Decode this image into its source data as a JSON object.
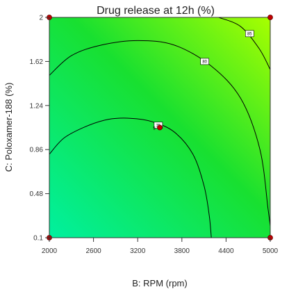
{
  "chart_data": {
    "type": "contour",
    "title": "Drug release at 12h (%)",
    "xlabel": "B: RPM (rpm)",
    "ylabel": "C: Poloxamer-188 (%)",
    "xlim": [
      2000,
      5000
    ],
    "ylim": [
      0.1,
      2
    ],
    "x_ticks": [
      "2000",
      "2600",
      "3200",
      "3800",
      "4400",
      "5000"
    ],
    "y_ticks": [
      "0.1",
      "0.48",
      "0.86",
      "1.24",
      "1.62",
      "2"
    ],
    "contours": [
      {
        "level": "75",
        "points": [
          [
            2000,
            0.82
          ],
          [
            2200,
            0.96
          ],
          [
            2500,
            1.06
          ],
          [
            2800,
            1.12
          ],
          [
            3100,
            1.13
          ],
          [
            3400,
            1.1
          ],
          [
            3700,
            1.01
          ],
          [
            3950,
            0.82
          ],
          [
            4100,
            0.55
          ],
          [
            4170,
            0.3
          ],
          [
            4200,
            0.1
          ]
        ]
      },
      {
        "level": "80",
        "points": [
          [
            2000,
            1.5
          ],
          [
            2300,
            1.67
          ],
          [
            2700,
            1.76
          ],
          [
            3200,
            1.8
          ],
          [
            3700,
            1.76
          ],
          [
            4200,
            1.58
          ],
          [
            4600,
            1.3
          ],
          [
            4860,
            0.86
          ],
          [
            4970,
            0.35
          ],
          [
            5000,
            0.2
          ]
        ]
      },
      {
        "level": "85",
        "points": [
          [
            4300,
            2.0
          ],
          [
            4600,
            1.92
          ],
          [
            4850,
            1.73
          ],
          [
            5000,
            1.55
          ]
        ]
      }
    ],
    "contour_label_positions": [
      {
        "level": "75",
        "x": 3480,
        "y": 1.07
      },
      {
        "level": "80",
        "x": 4110,
        "y": 1.62
      },
      {
        "level": "85",
        "x": 4720,
        "y": 1.86
      }
    ],
    "design_points": [
      [
        2000,
        0.1
      ],
      [
        5000,
        0.1
      ],
      [
        2000,
        2
      ],
      [
        5000,
        2
      ]
    ],
    "center_point": {
      "x": 3500,
      "y": 1.05,
      "label": "5"
    },
    "gradient_colors": {
      "low": "#00f0a0",
      "mid": "#18e030",
      "high": "#a8ff00"
    },
    "grid": false
  }
}
